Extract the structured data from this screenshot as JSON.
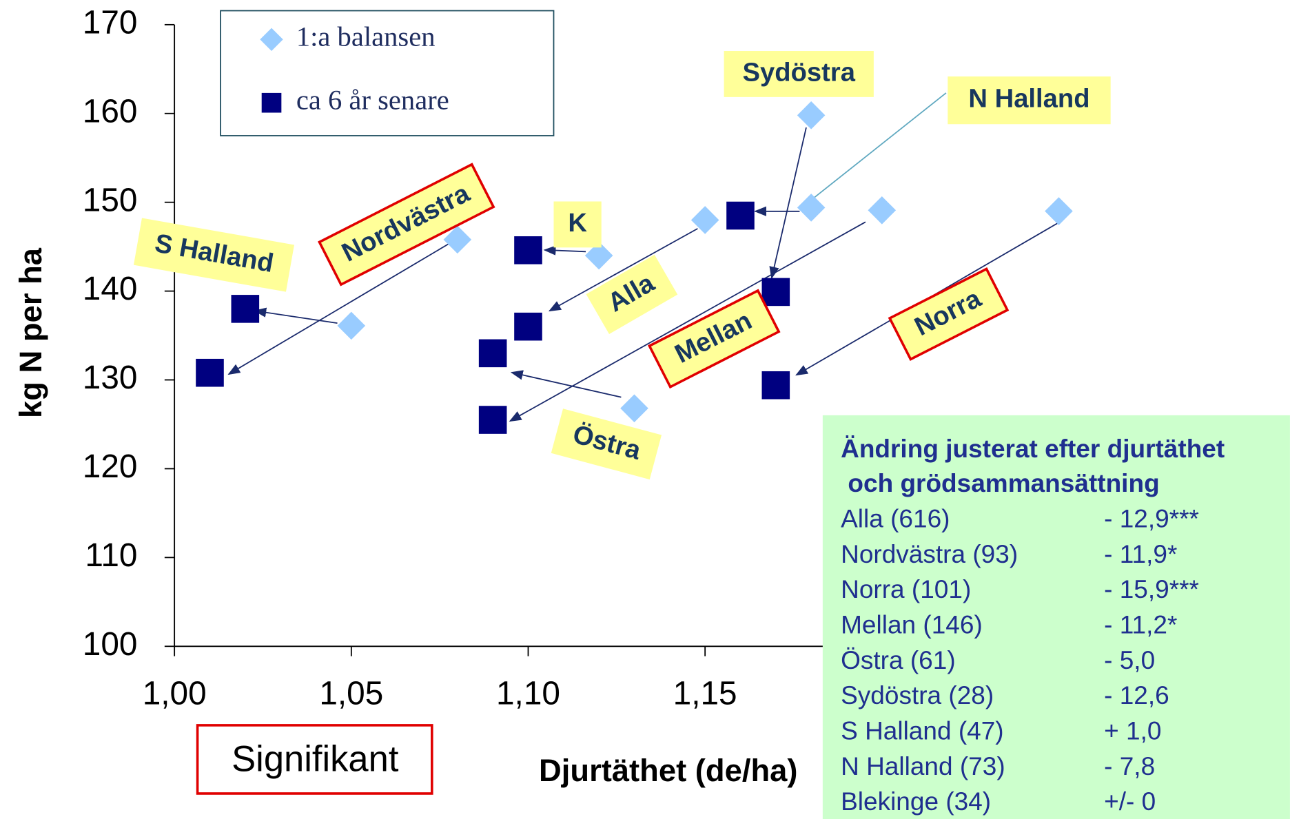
{
  "chart_data": {
    "type": "scatter",
    "ylabel": "kg N per ha",
    "xlabel": "Djurtäthet (de/ha)",
    "xlim": [
      1.0,
      1.3
    ],
    "ylim": [
      100,
      170
    ],
    "xticks": [
      {
        "value": 1.0,
        "label": "1,00"
      },
      {
        "value": 1.05,
        "label": "1,05"
      },
      {
        "value": 1.1,
        "label": "1,10"
      },
      {
        "value": 1.15,
        "label": "1,15"
      }
    ],
    "yticks": [
      100,
      110,
      120,
      130,
      140,
      150,
      160,
      170
    ],
    "legend": "top-left",
    "series": [
      {
        "name": "1:a balansen",
        "color": "#99ccff",
        "marker": "diamond",
        "x": [
          1.18,
          1.18,
          1.2,
          1.25,
          1.15,
          1.12,
          1.08,
          1.05,
          1.13
        ],
        "values": [
          159.8,
          149.4,
          149.1,
          149,
          148,
          144,
          145.8,
          136.1,
          126.8
        ]
      },
      {
        "name": "ca 6 år senare",
        "color": "#000080",
        "marker": "square",
        "x": [
          1.01,
          1.02,
          1.1,
          1.1,
          1.09,
          1.09,
          1.16,
          1.17,
          1.17
        ],
        "values": [
          130.8,
          138,
          144.6,
          136,
          133,
          125.5,
          148.5,
          139.9,
          129.4
        ]
      }
    ],
    "annotations": [
      "Sydöstra",
      "N Halland",
      "K",
      "S Halland",
      "Nordvästra",
      "Alla",
      "Mellan",
      "Norra",
      "Östra"
    ]
  },
  "summary_box": {
    "title": [
      "Ändring justerat efter djurtäthet",
      " och grödsammansättning"
    ],
    "rows": [
      [
        "Alla (616)",
        "- 12,9***"
      ],
      [
        "Nordvästra (93)",
        "- 11,9*"
      ],
      [
        "Norra (101)",
        "- 15,9***"
      ],
      [
        "Mellan (146)",
        "- 11,2*"
      ],
      [
        "Östra (61)",
        "- 5,0"
      ],
      [
        "Sydöstra (28)",
        "- 12,6"
      ],
      [
        "S Halland (47)",
        "+ 1,0"
      ],
      [
        "N Halland (73)",
        "- 7,8"
      ],
      [
        "Blekinge (34)",
        "+/- 0"
      ]
    ]
  },
  "note": "Signifikant"
}
